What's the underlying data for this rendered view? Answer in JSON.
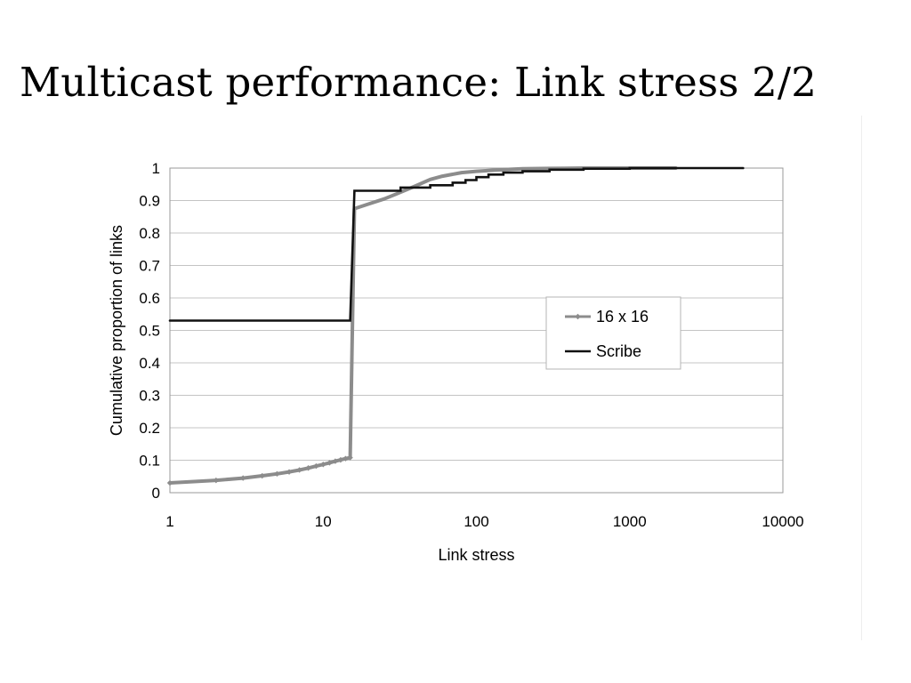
{
  "slide": {
    "title": "Multicast performance: Link stress 2/2"
  },
  "chart_data": {
    "type": "line",
    "title": "",
    "xlabel": "Link stress",
    "ylabel": "Cumulative proportion of links",
    "x_scale": "log",
    "xlim": [
      1,
      10000
    ],
    "ylim": [
      0,
      1
    ],
    "x_ticks": [
      "1",
      "10",
      "100",
      "1000",
      "10000"
    ],
    "y_ticks": [
      "0",
      "0.1",
      "0.2",
      "0.3",
      "0.4",
      "0.5",
      "0.6",
      "0.7",
      "0.8",
      "0.9",
      "1"
    ],
    "grid": "horizontal",
    "legend_position": "center-right",
    "series": [
      {
        "name": "16 x 16",
        "color": "#8c8c8c",
        "marker": "diamond",
        "step": false,
        "points": [
          [
            1,
            0.03
          ],
          [
            2,
            0.038
          ],
          [
            3,
            0.045
          ],
          [
            4,
            0.052
          ],
          [
            5,
            0.058
          ],
          [
            6,
            0.064
          ],
          [
            7,
            0.07
          ],
          [
            8,
            0.076
          ],
          [
            9,
            0.082
          ],
          [
            10,
            0.087
          ],
          [
            11,
            0.092
          ],
          [
            12,
            0.097
          ],
          [
            13,
            0.101
          ],
          [
            14,
            0.105
          ],
          [
            15,
            0.108
          ],
          [
            16,
            0.875
          ],
          [
            20,
            0.89
          ],
          [
            25,
            0.905
          ],
          [
            30,
            0.92
          ],
          [
            40,
            0.945
          ],
          [
            50,
            0.965
          ],
          [
            60,
            0.975
          ],
          [
            80,
            0.986
          ],
          [
            100,
            0.99
          ],
          [
            150,
            0.995
          ],
          [
            200,
            0.998
          ],
          [
            300,
            0.999
          ],
          [
            500,
            1.0
          ],
          [
            1000,
            1.0
          ],
          [
            2000,
            1.0
          ]
        ],
        "marker_max_x": 15
      },
      {
        "name": "Scribe",
        "color": "#111111",
        "marker": "none",
        "step": true,
        "points": [
          [
            1,
            0.53
          ],
          [
            15,
            0.53
          ],
          [
            16,
            0.93
          ],
          [
            32,
            0.93
          ],
          [
            32,
            0.94
          ],
          [
            50,
            0.94
          ],
          [
            50,
            0.947
          ],
          [
            70,
            0.947
          ],
          [
            70,
            0.955
          ],
          [
            85,
            0.955
          ],
          [
            85,
            0.963
          ],
          [
            100,
            0.963
          ],
          [
            100,
            0.972
          ],
          [
            120,
            0.972
          ],
          [
            120,
            0.98
          ],
          [
            150,
            0.98
          ],
          [
            150,
            0.986
          ],
          [
            200,
            0.986
          ],
          [
            200,
            0.99
          ],
          [
            300,
            0.99
          ],
          [
            300,
            0.995
          ],
          [
            500,
            0.995
          ],
          [
            500,
            0.998
          ],
          [
            1000,
            0.998
          ],
          [
            1000,
            1.0
          ],
          [
            5500,
            1.0
          ]
        ]
      }
    ]
  }
}
